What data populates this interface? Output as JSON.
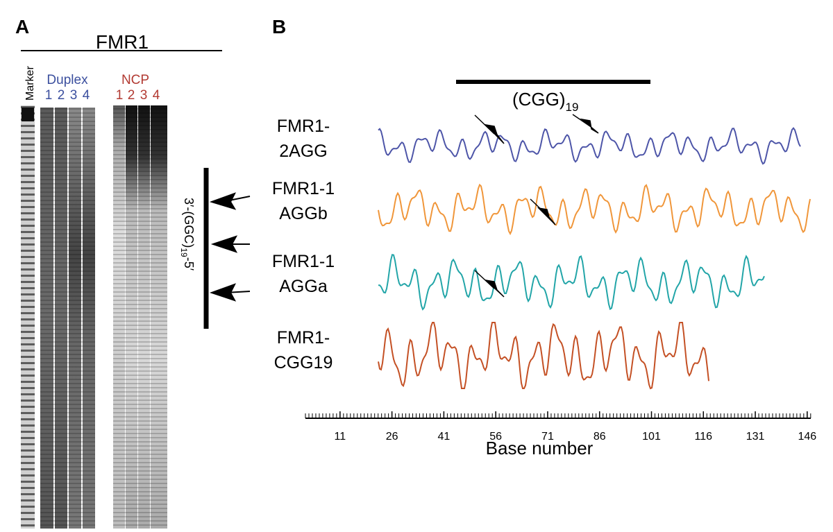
{
  "panel_a": {
    "label": "A",
    "title": "FMR1",
    "marker": "Marker",
    "groups": [
      {
        "name": "Duplex",
        "color": "#3b4f9e",
        "lanes": [
          "1",
          "2",
          "3",
          "4"
        ]
      },
      {
        "name": "NCP",
        "color": "#b23a32",
        "lanes": [
          "1",
          "2",
          "3",
          "4"
        ]
      }
    ],
    "region_label": {
      "before": "3′-(GGC)",
      "subscript": "19",
      "after": "-5′"
    }
  },
  "panel_b": {
    "label": "B",
    "region_label": {
      "text": "(CGG)",
      "subscript": "19"
    },
    "traces": [
      {
        "name": [
          "FMR1-",
          "2AGG"
        ],
        "color": "#4d55a8"
      },
      {
        "name": [
          "FMR1-1",
          "AGGb"
        ],
        "color": "#f0963a"
      },
      {
        "name": [
          "FMR1-1",
          "AGGa"
        ],
        "color": "#22a5a8"
      },
      {
        "name": [
          "FMR1-",
          "CGG19"
        ],
        "color": "#c45024"
      }
    ],
    "axis": {
      "title": "Base number",
      "ticks": [
        11,
        26,
        41,
        56,
        71,
        86,
        101,
        116,
        131,
        146
      ]
    }
  }
}
